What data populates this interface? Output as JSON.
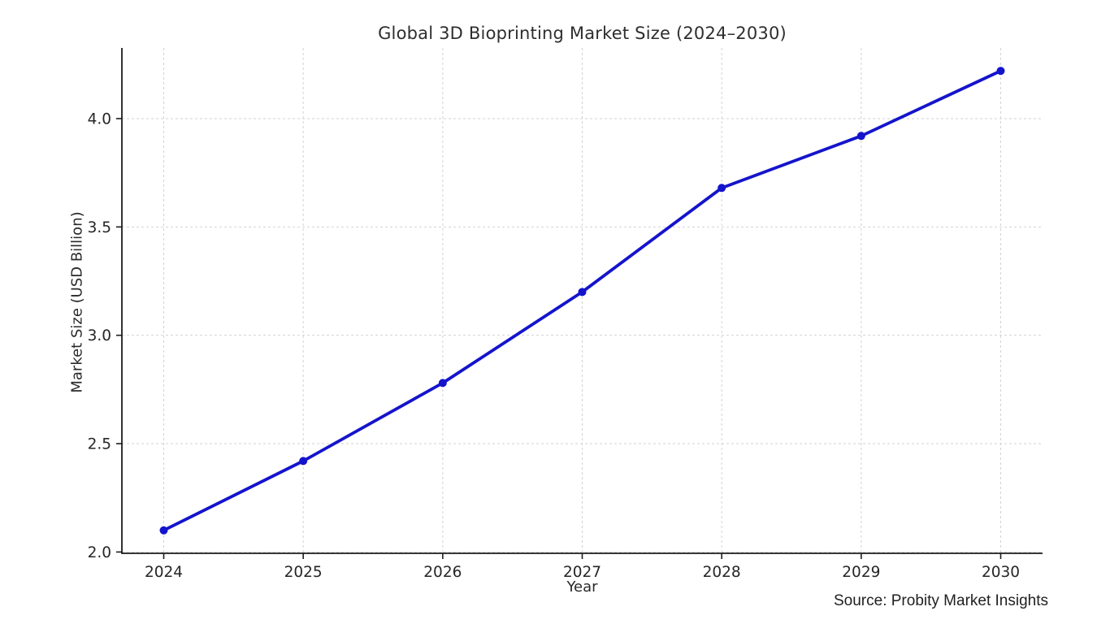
{
  "page": {
    "background": "#ffffff"
  },
  "chart_data": {
    "type": "line",
    "title": "Global 3D Bioprinting Market Size (2024–2030)",
    "xlabel": "Year",
    "ylabel": "Market Size (USD Billion)",
    "source_note": "Source: Probity Market Insights",
    "series": [
      {
        "name": "Market Size (USD Billion)",
        "x": [
          2024,
          2025,
          2026,
          2027,
          2028,
          2029,
          2030
        ],
        "values": [
          2.1,
          2.42,
          2.78,
          3.2,
          3.68,
          3.92,
          4.22
        ]
      }
    ],
    "xticks": [
      2024,
      2025,
      2026,
      2027,
      2028,
      2029,
      2030
    ],
    "yticks": [
      2.0,
      2.5,
      3.0,
      3.5,
      4.0
    ],
    "xlim": [
      2023.7,
      2030.3
    ],
    "ylim": [
      1.994,
      4.326
    ],
    "grid": true,
    "grid_style": "dashed",
    "legend": "none",
    "line_color": "#1414cc",
    "marker": "circle",
    "marker_color": "#1414cc",
    "grid_color": "#d2d2d2",
    "spine_color": "#1c1c1c",
    "tick_text_color": "#262626",
    "title_color": "#2e2e2e"
  }
}
